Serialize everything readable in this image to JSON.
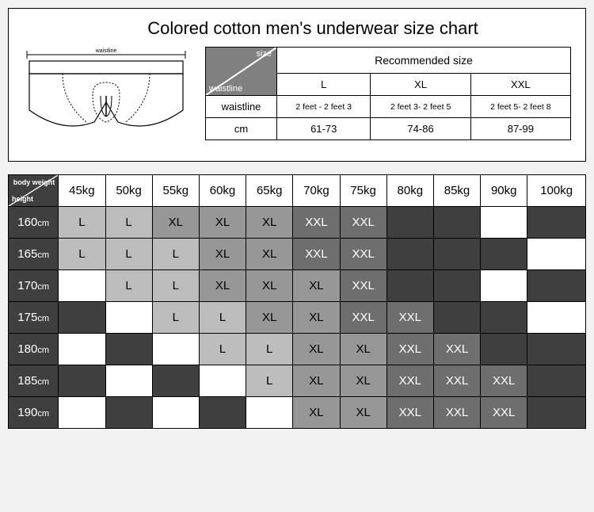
{
  "title": "Colored cotton men's underwear size chart",
  "illus_label": "waistline",
  "rec_table": {
    "recommended_label": "Recommended size",
    "diag_top": "size",
    "diag_bottom": "waistline",
    "sizes": [
      "L",
      "XL",
      "XXL"
    ],
    "rows": [
      {
        "label": "waistline",
        "values": [
          "2 feet - 2 feet 3",
          "2 feet 3- 2 feet 5",
          "2 feet 5- 2 feet 8"
        ]
      },
      {
        "label": "cm",
        "values": [
          "61-73",
          "74-86",
          "87-99"
        ]
      }
    ]
  },
  "main_table": {
    "corner_top": "body weight",
    "corner_bottom": "height",
    "weights": [
      "45kg",
      "50kg",
      "55kg",
      "60kg",
      "65kg",
      "70kg",
      "75kg",
      "80kg",
      "85kg",
      "90kg",
      "100kg"
    ],
    "heights": [
      "160",
      "165",
      "170",
      "175",
      "180",
      "185",
      "190"
    ],
    "height_unit": "cm",
    "cells": [
      [
        "L",
        "L",
        "XL",
        "XL",
        "XL",
        "XXL",
        "XXL",
        "",
        "",
        "",
        ""
      ],
      [
        "L",
        "L",
        "L",
        "XL",
        "XL",
        "XXL",
        "XXL",
        "",
        "",
        "",
        ""
      ],
      [
        "",
        "L",
        "L",
        "XL",
        "XL",
        "XL",
        "XXL",
        "",
        "",
        "",
        ""
      ],
      [
        "",
        "",
        "L",
        "L",
        "XL",
        "XL",
        "XXL",
        "XXL",
        "",
        "",
        ""
      ],
      [
        "",
        "",
        "",
        "L",
        "L",
        "XL",
        "XL",
        "XXL",
        "XXL",
        "",
        ""
      ],
      [
        "",
        "",
        "",
        "",
        "L",
        "XL",
        "XL",
        "XXL",
        "XXL",
        "XXL",
        ""
      ],
      [
        "",
        "",
        "",
        "",
        "",
        "XL",
        "XL",
        "XXL",
        "XXL",
        "XXL",
        ""
      ]
    ],
    "colors": {
      "L": "#bdbcbc",
      "XL": "#989797",
      "XXL": "#6f6e6e",
      "empty_light": "#ffffff",
      "empty_dark": "#403f3f"
    },
    "empty_dark_map": [
      [
        0,
        0,
        0,
        0,
        0,
        0,
        0,
        1,
        1,
        0,
        1
      ],
      [
        0,
        0,
        0,
        0,
        0,
        0,
        0,
        1,
        1,
        1,
        0
      ],
      [
        0,
        0,
        0,
        0,
        0,
        0,
        0,
        1,
        1,
        0,
        1
      ],
      [
        1,
        0,
        0,
        0,
        0,
        0,
        0,
        0,
        1,
        1,
        0
      ],
      [
        0,
        1,
        0,
        0,
        0,
        0,
        0,
        0,
        0,
        1,
        1
      ],
      [
        1,
        0,
        1,
        0,
        0,
        0,
        0,
        0,
        0,
        0,
        1
      ],
      [
        0,
        1,
        0,
        1,
        0,
        0,
        0,
        0,
        0,
        0,
        1
      ]
    ]
  }
}
